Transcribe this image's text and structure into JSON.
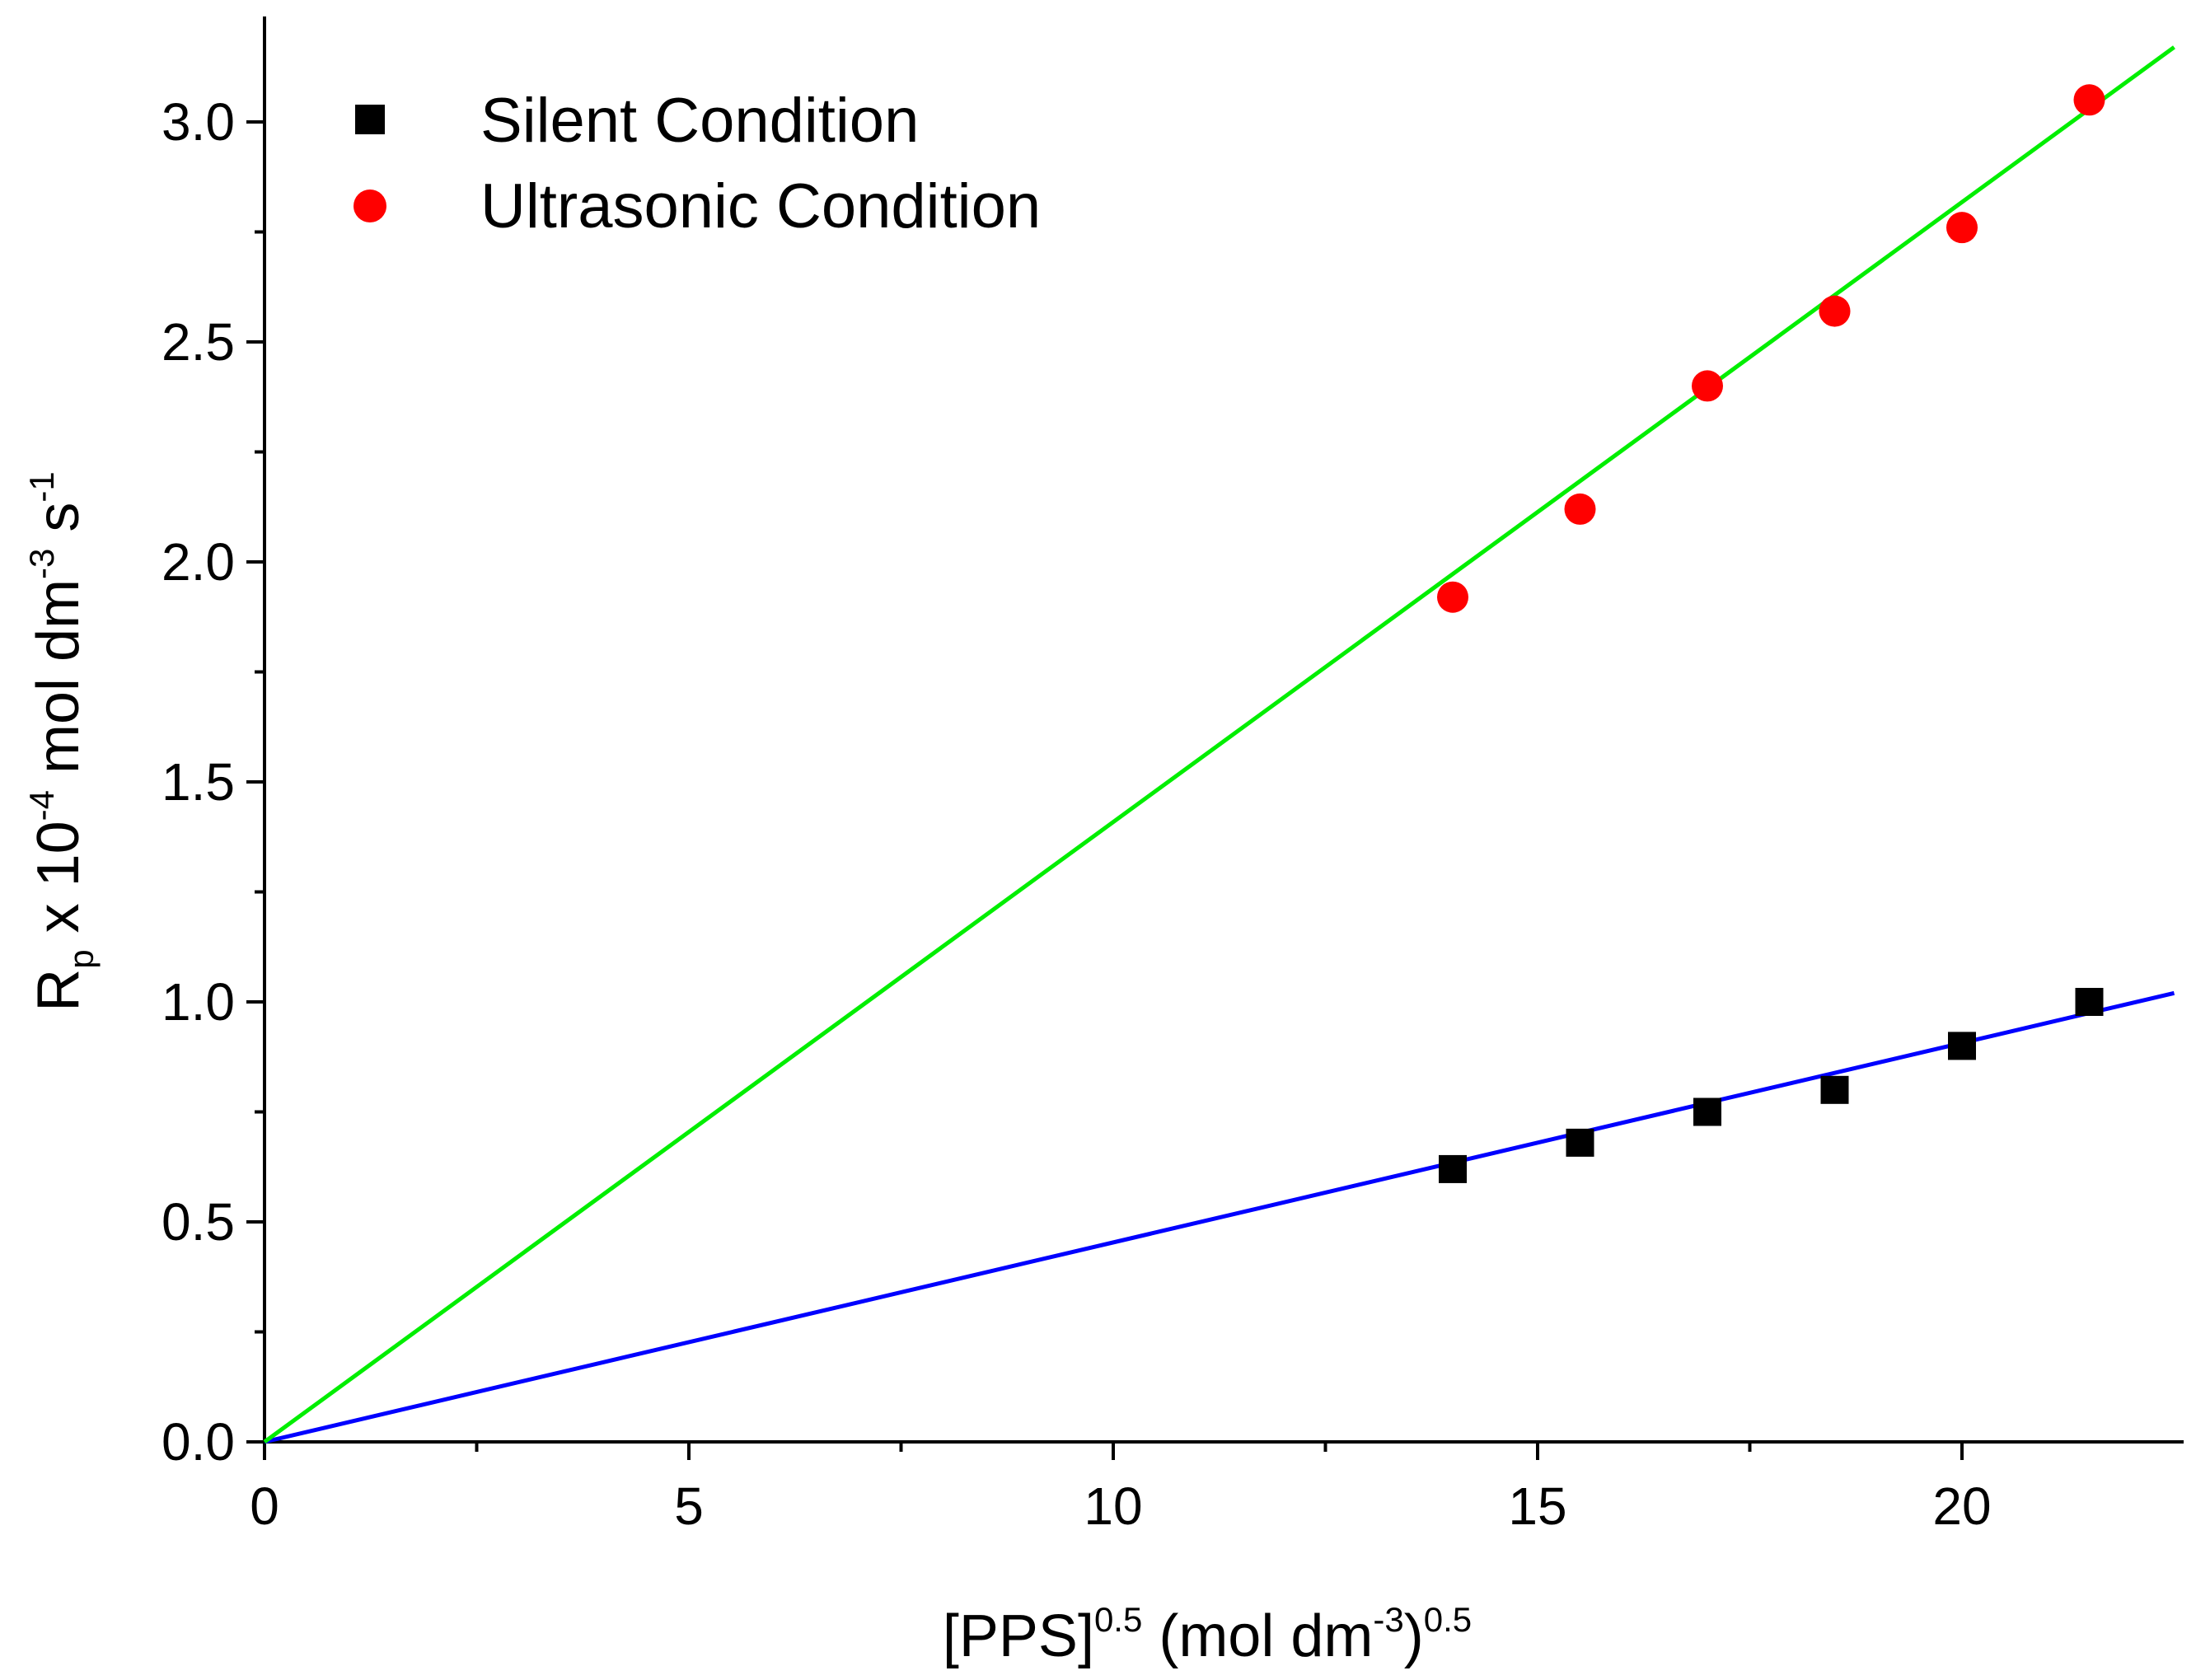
{
  "chart_data": {
    "type": "scatter",
    "title": "",
    "xlabel": {
      "base": "[PPS]",
      "sup1": "0.5",
      "mid": " (mol dm",
      "sup2": "-3",
      "close": ")",
      "sup3": "0.5"
    },
    "ylabel": {
      "base": "R",
      "sub": "p",
      "mid1": " x 10",
      "sup1": "-4",
      "mid2": " mol dm",
      "sup2": "-3",
      "mid3": " s",
      "sup3": "-1"
    },
    "xlim": [
      0,
      22.5
    ],
    "ylim": [
      0,
      3.25
    ],
    "x_ticks": [
      0,
      5,
      10,
      15,
      20
    ],
    "x_tick_labels": [
      "0",
      "5",
      "10",
      "15",
      "20"
    ],
    "x_minor_ticks": [
      2.5,
      7.5,
      12.5,
      17.5
    ],
    "y_ticks": [
      0,
      0.5,
      1.0,
      1.5,
      2.0,
      2.5,
      3.0
    ],
    "y_tick_labels": [
      "0.0",
      "0.5",
      "1.0",
      "1.5",
      "2.0",
      "2.5",
      "3.0"
    ],
    "y_minor_ticks": [
      0.25,
      0.75,
      1.25,
      1.75,
      2.25,
      2.75
    ],
    "series": [
      {
        "name": "Silent Condition",
        "marker": "square",
        "color": "#000000",
        "x": [
          14,
          15.5,
          17,
          18.5,
          20,
          21.5
        ],
        "y": [
          0.62,
          0.68,
          0.75,
          0.8,
          0.9,
          1.0
        ],
        "fit": {
          "x": [
            0,
            22.5
          ],
          "y": [
            0.0,
            1.02
          ],
          "color": "#0000ff"
        }
      },
      {
        "name": "Ultrasonic Condition",
        "marker": "circle",
        "color": "#ff0000",
        "x": [
          14,
          15.5,
          17,
          18.5,
          20,
          21.5
        ],
        "y": [
          1.92,
          2.12,
          2.4,
          2.57,
          2.76,
          3.05
        ],
        "fit": {
          "x": [
            0,
            22.5
          ],
          "y": [
            0.0,
            3.17
          ],
          "color": "#00ee00"
        }
      }
    ],
    "legend": {
      "position": "top-left"
    },
    "grid": false
  }
}
